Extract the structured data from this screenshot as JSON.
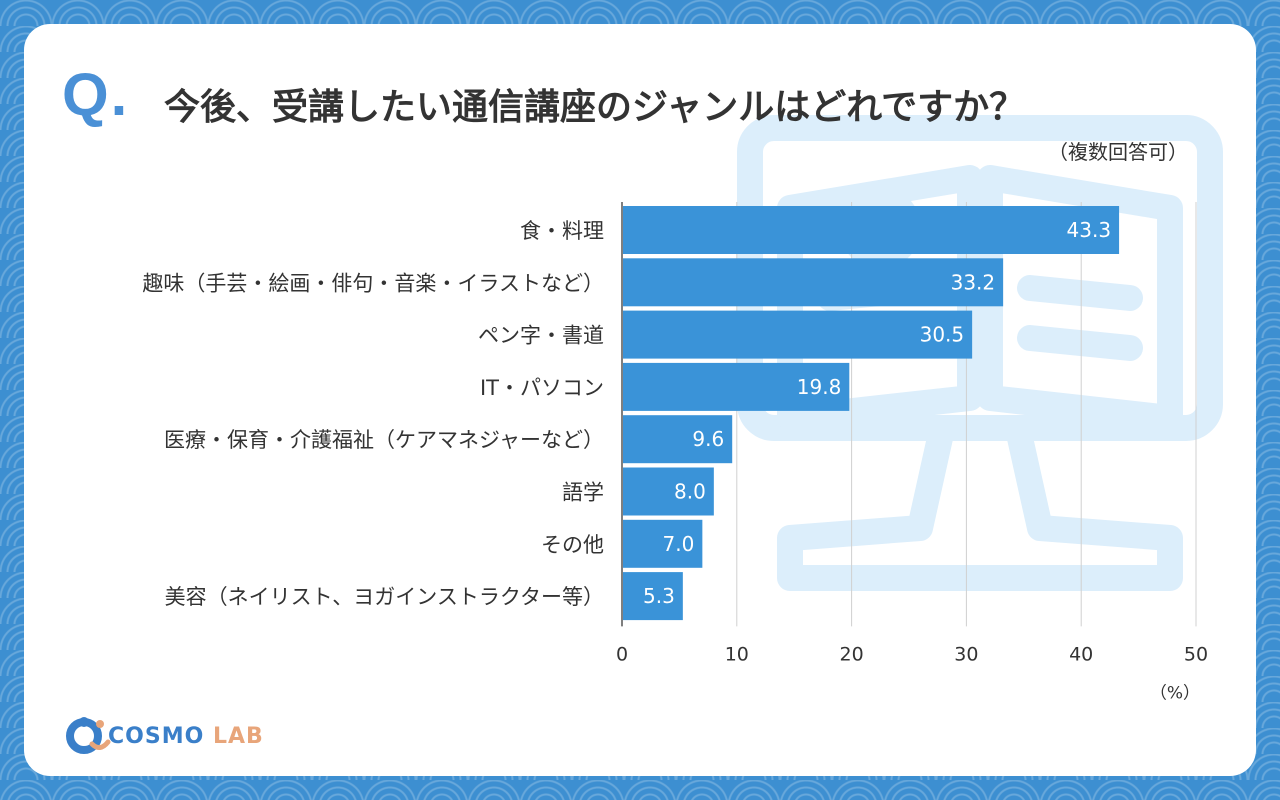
{
  "header": {
    "q_mark": "Q.",
    "title": "今後、受講したい通信講座のジャンルはどれですか？",
    "subtitle": "（複数回答可）"
  },
  "chart_data": {
    "type": "bar",
    "orientation": "horizontal",
    "categories": [
      "食・料理",
      "趣味（手芸・絵画・俳句・音楽・イラストなど）",
      "ペン字・書道",
      "IT・パソコン",
      "医療・保育・介護福祉（ケアマネジャーなど）",
      "語学",
      "その他",
      "美容（ネイリスト、ヨガインストラクター等）"
    ],
    "values": [
      43.3,
      33.2,
      30.5,
      19.8,
      9.6,
      8.0,
      7.0,
      5.3
    ],
    "value_labels": [
      "43.3",
      "33.2",
      "30.5",
      "19.8",
      "9.6",
      "8.0",
      "7.0",
      "5.3"
    ],
    "xlim": [
      0,
      50
    ],
    "xticks": [
      0,
      10,
      20,
      30,
      40,
      50
    ],
    "xlabel": "（%）",
    "grid": true,
    "bar_color": "#3a93d8",
    "grid_color": "#d0d0d0"
  },
  "logo": {
    "brand": "COSMO",
    "suffix": "LAB",
    "primary_color": "#3a7fc9",
    "accent_color": "#e8a57a"
  }
}
